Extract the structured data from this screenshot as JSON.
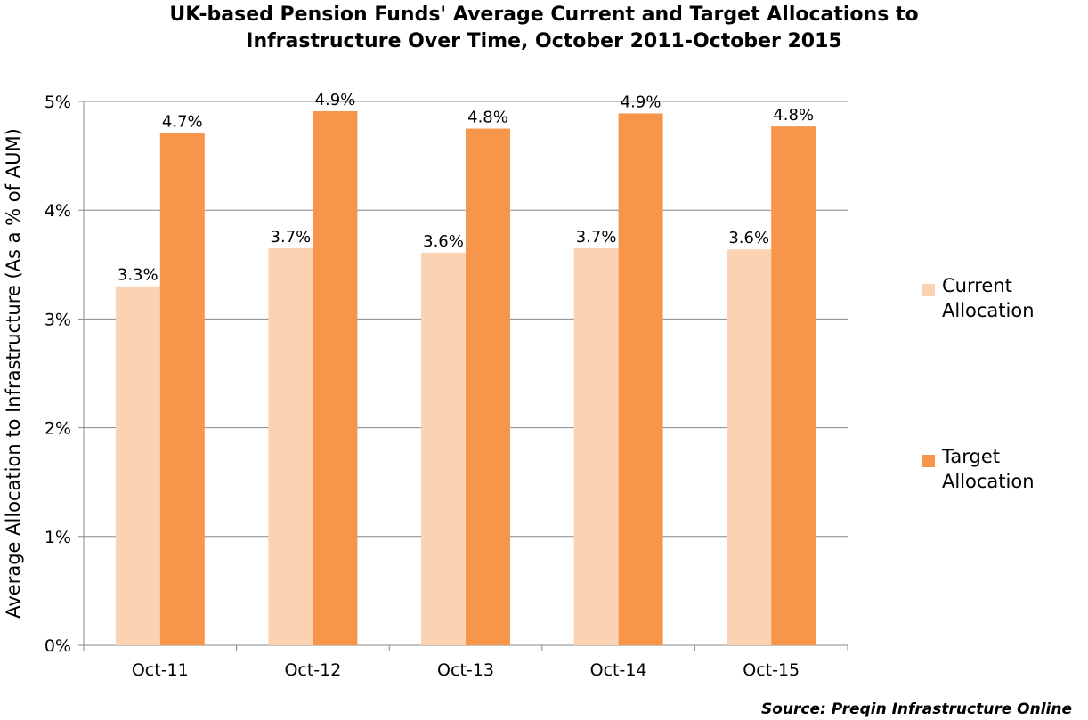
{
  "title": {
    "line1": "UK-based Pension Funds' Average Current and Target Allocations to",
    "line2": "Infrastructure Over Time, October 2011-October 2015"
  },
  "source": "Source: Preqin Infrastructure Online",
  "chart_data": {
    "type": "bar",
    "title": "UK-based Pension Funds' Average Current and Target Allocations to Infrastructure Over Time, October 2011-October 2015",
    "categories": [
      "Oct-11",
      "Oct-12",
      "Oct-13",
      "Oct-14",
      "Oct-15"
    ],
    "series": [
      {
        "name": "Current Allocation",
        "values": [
          3.3,
          3.65,
          3.61,
          3.65,
          3.64
        ],
        "labels": [
          "3.3%",
          "3.7%",
          "3.6%",
          "3.7%",
          "3.6%"
        ],
        "color": "#fbd3b2"
      },
      {
        "name": "Target Allocation",
        "values": [
          4.71,
          4.91,
          4.75,
          4.89,
          4.77
        ],
        "labels": [
          "4.7%",
          "4.9%",
          "4.8%",
          "4.9%",
          "4.8%"
        ],
        "color": "#f7964a"
      }
    ],
    "xlabel": "",
    "ylabel": "Average Allocation to Infrastructure (As a % of AUM)",
    "ylim": [
      0,
      5
    ],
    "yticks": [
      0,
      1,
      2,
      3,
      4,
      5
    ],
    "ytick_labels": [
      "0%",
      "1%",
      "2%",
      "3%",
      "4%",
      "5%"
    ],
    "grid": true,
    "legend_position": "right"
  },
  "colors": {
    "gridline": "#888888",
    "axis": "#888888"
  }
}
